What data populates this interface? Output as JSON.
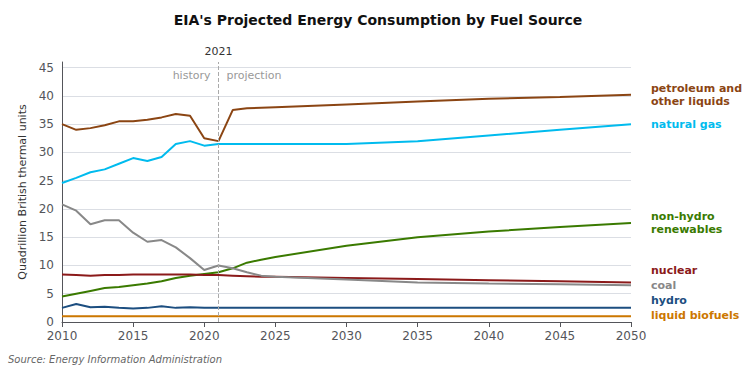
{
  "chart_data": {
    "type": "line",
    "title": "EIA's Projected Energy Consumption by Fuel Source",
    "ylabel": "Quadrillion British thermal units",
    "source": "Source: Energy Information Administration",
    "x": [
      2010,
      2011,
      2012,
      2013,
      2014,
      2015,
      2016,
      2017,
      2018,
      2019,
      2020,
      2021,
      2022,
      2023,
      2024,
      2025,
      2030,
      2035,
      2040,
      2045,
      2050
    ],
    "xlim": [
      2010,
      2050
    ],
    "xticks": [
      2010,
      2015,
      2020,
      2025,
      2030,
      2035,
      2040,
      2045,
      2050
    ],
    "ylim": [
      0,
      46
    ],
    "yticks": [
      0,
      5,
      10,
      15,
      20,
      25,
      30,
      35,
      40,
      45
    ],
    "grid": true,
    "annotations": [
      {
        "text": "2021",
        "x": 2021
      },
      {
        "text": "history"
      },
      {
        "text": "projection"
      }
    ],
    "series": [
      {
        "name": "petroleum and\nother liquids",
        "color": "#8B4513",
        "values": [
          35.0,
          34.0,
          34.3,
          34.8,
          35.5,
          35.5,
          35.8,
          36.2,
          36.8,
          36.5,
          32.5,
          32.0,
          37.5,
          37.8,
          37.9,
          38.0,
          38.5,
          39.0,
          39.5,
          39.8,
          40.2
        ]
      },
      {
        "name": "natural gas",
        "color": "#00BBEE",
        "values": [
          24.6,
          25.5,
          26.5,
          27.0,
          28.0,
          29.0,
          28.5,
          29.2,
          31.5,
          32.0,
          31.2,
          31.5,
          31.5,
          31.5,
          31.5,
          31.5,
          31.5,
          32.0,
          33.0,
          34.0,
          35.0
        ]
      },
      {
        "name": "non-hydro\nrenewables",
        "color": "#3A7A00",
        "values": [
          4.5,
          5.0,
          5.5,
          6.0,
          6.2,
          6.5,
          6.8,
          7.2,
          7.8,
          8.2,
          8.5,
          8.8,
          9.5,
          10.5,
          11.0,
          11.5,
          13.5,
          15.0,
          16.0,
          16.8,
          17.5
        ]
      },
      {
        "name": "nuclear",
        "color": "#8B1A1A",
        "values": [
          8.4,
          8.3,
          8.2,
          8.3,
          8.3,
          8.4,
          8.4,
          8.4,
          8.4,
          8.4,
          8.3,
          8.3,
          8.2,
          8.1,
          8.0,
          8.0,
          7.8,
          7.6,
          7.4,
          7.2,
          7.0
        ]
      },
      {
        "name": "coal",
        "color": "#888888",
        "values": [
          20.8,
          19.7,
          17.3,
          18.0,
          18.0,
          15.8,
          14.2,
          14.5,
          13.2,
          11.3,
          9.2,
          10.0,
          9.5,
          8.8,
          8.2,
          8.0,
          7.5,
          7.0,
          6.8,
          6.7,
          6.5
        ]
      },
      {
        "name": "hydro",
        "color": "#1C4E80",
        "values": [
          2.5,
          3.2,
          2.6,
          2.7,
          2.5,
          2.4,
          2.5,
          2.8,
          2.5,
          2.6,
          2.5,
          2.5,
          2.5,
          2.5,
          2.5,
          2.5,
          2.5,
          2.5,
          2.5,
          2.5,
          2.5
        ]
      },
      {
        "name": "liquid biofuels",
        "color": "#CC7700",
        "values": [
          1.0,
          1.0,
          1.0,
          1.0,
          1.0,
          1.0,
          1.0,
          1.0,
          1.0,
          1.0,
          1.0,
          1.0,
          1.0,
          1.0,
          1.0,
          1.0,
          1.0,
          1.0,
          1.0,
          1.0,
          1.0
        ]
      }
    ]
  }
}
